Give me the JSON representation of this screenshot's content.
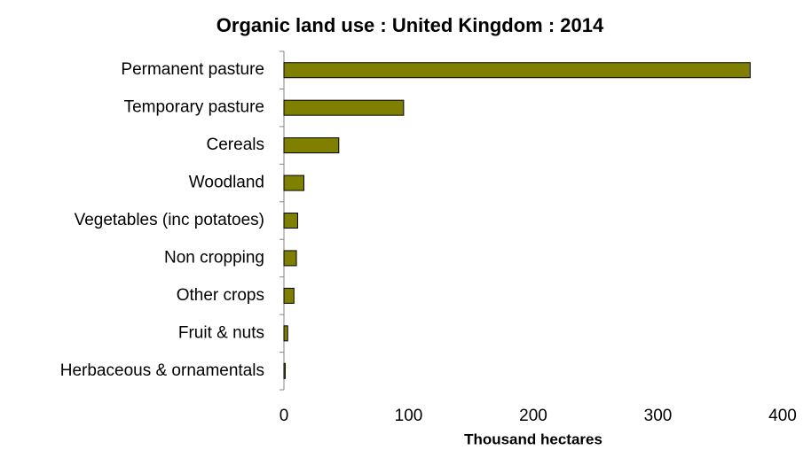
{
  "chart_data": {
    "type": "bar",
    "orientation": "horizontal",
    "title": "Organic land use : United Kingdom : 2014",
    "xlabel": "Thousand hectares",
    "categories": [
      "Permanent pasture",
      "Temporary pasture",
      "Cereals",
      "Woodland",
      "Vegetables (inc potatoes)",
      "Non cropping",
      "Other crops",
      "Fruit & nuts",
      "Herbaceous & ornamentals"
    ],
    "values": [
      374,
      96,
      44,
      16,
      11,
      10,
      8,
      3,
      1
    ],
    "color": "#808000",
    "xlim": [
      0,
      400
    ],
    "xticks": [
      0,
      100,
      200,
      300,
      400
    ],
    "grid": false
  }
}
